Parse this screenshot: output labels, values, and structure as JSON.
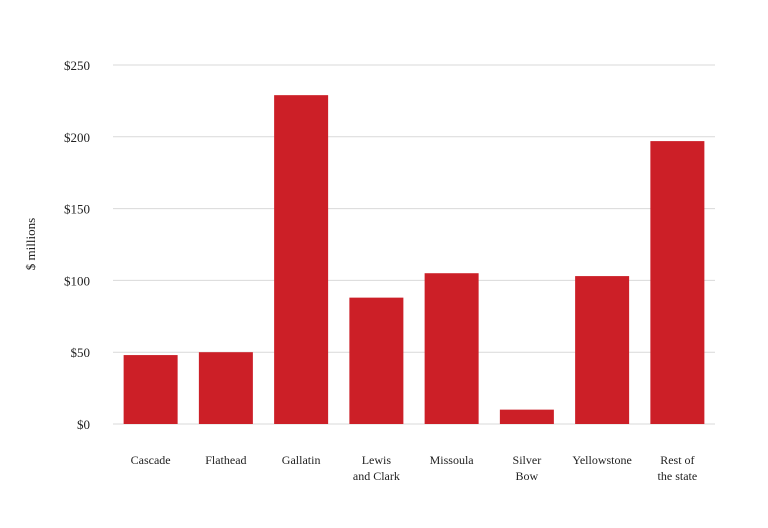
{
  "chart_data": {
    "type": "bar",
    "title": "",
    "xlabel": "",
    "ylabel": "$ millions",
    "categories": [
      [
        "Cascade"
      ],
      [
        "Flathead"
      ],
      [
        "Gallatin"
      ],
      [
        "Lewis",
        "and Clark"
      ],
      [
        "Missoula"
      ],
      [
        "Silver",
        "Bow"
      ],
      [
        "Yellowstone"
      ],
      [
        "Rest of",
        "the state"
      ]
    ],
    "values": [
      48,
      50,
      229,
      88,
      105,
      10,
      103,
      197
    ],
    "ylim": [
      0,
      250
    ],
    "yticks": [
      0,
      50,
      100,
      150,
      200,
      250
    ],
    "ytick_labels": [
      "$0",
      "$50",
      "$100",
      "$150",
      "$200",
      "$250"
    ],
    "grid": true,
    "bar_color": "#cc1f27",
    "grid_color": "#d9d9d9"
  }
}
